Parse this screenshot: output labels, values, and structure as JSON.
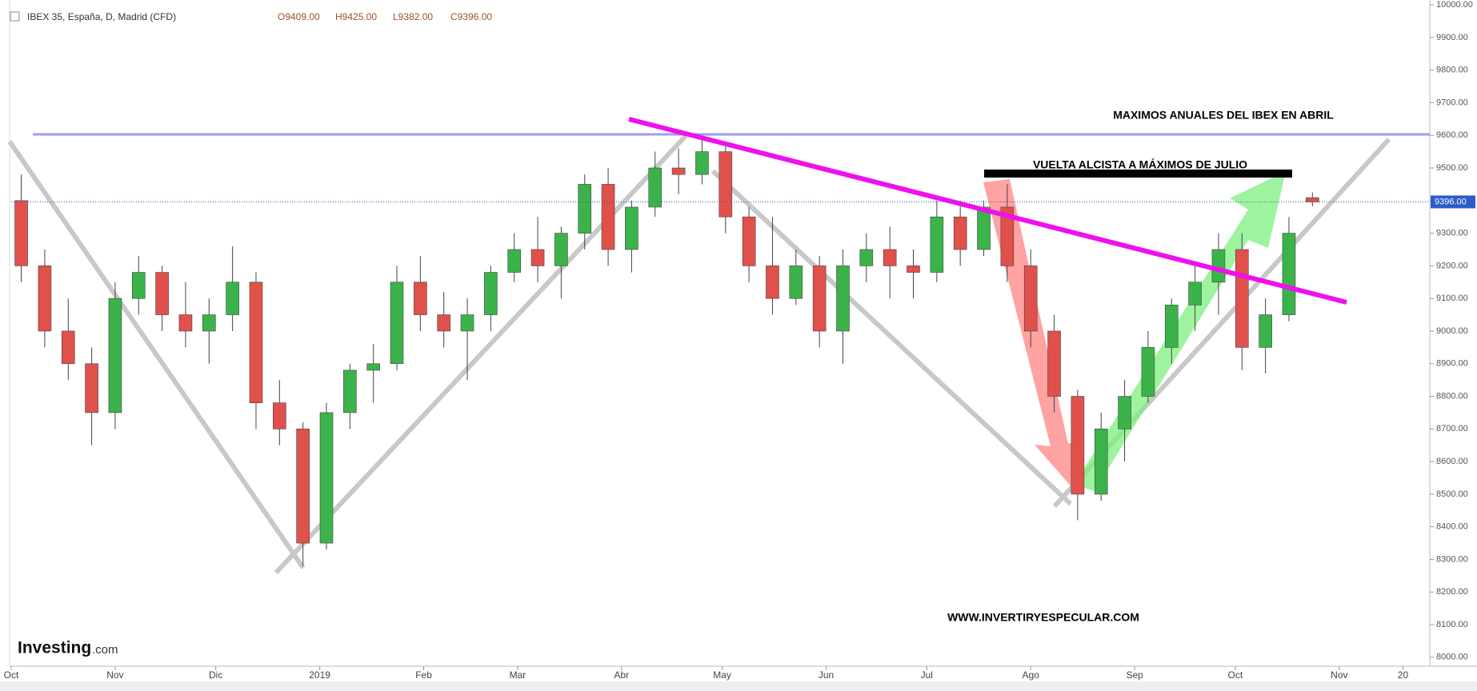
{
  "chart_data": {
    "type": "candlestick",
    "title": "IBEX 35, España, D, Madrid (CFD)",
    "ohlc_labels": [
      "O9409.00",
      "H9425.00",
      "L9382.00",
      "C9396.00"
    ],
    "up_color": "#3bb34a",
    "down_color": "#e0514b",
    "grid": false,
    "xlim": [
      0,
      423
    ],
    "xticks": [
      {
        "value": 0,
        "label": "Oct"
      },
      {
        "value": 31,
        "label": "Nov"
      },
      {
        "value": 61,
        "label": "Dic"
      },
      {
        "value": 92,
        "label": "2019"
      },
      {
        "value": 123,
        "label": "Feb"
      },
      {
        "value": 151,
        "label": "Mar"
      },
      {
        "value": 182,
        "label": "Abr"
      },
      {
        "value": 212,
        "label": "May"
      },
      {
        "value": 243,
        "label": "Jun"
      },
      {
        "value": 273,
        "label": "Jul"
      },
      {
        "value": 304,
        "label": "Ago"
      },
      {
        "value": 335,
        "label": "Sep"
      },
      {
        "value": 365,
        "label": "Oct"
      },
      {
        "value": 396,
        "label": "Nov"
      },
      {
        "value": 415,
        "label": "20"
      }
    ],
    "ylim": [
      7980,
      10010
    ],
    "yticks": [
      {
        "value": 8000,
        "label": "8000.00"
      },
      {
        "value": 8100,
        "label": "8100.00"
      },
      {
        "value": 8200,
        "label": "8200.00"
      },
      {
        "value": 8300,
        "label": "8300.00"
      },
      {
        "value": 8400,
        "label": "8400.00"
      },
      {
        "value": 8500,
        "label": "8500.00"
      },
      {
        "value": 8600,
        "label": "8600.00"
      },
      {
        "value": 8700,
        "label": "8700.00"
      },
      {
        "value": 8800,
        "label": "8800.00"
      },
      {
        "value": 8900,
        "label": "8900.00"
      },
      {
        "value": 9000,
        "label": "9000.00"
      },
      {
        "value": 9100,
        "label": "9100.00"
      },
      {
        "value": 9200,
        "label": "9200.00"
      },
      {
        "value": 9300,
        "label": "9300.00"
      },
      {
        "value": 9400,
        "label": "9400.00"
      },
      {
        "value": 9500,
        "label": "9500.00"
      },
      {
        "value": 9600,
        "label": "9600.00"
      },
      {
        "value": 9700,
        "label": "9700.00"
      },
      {
        "value": 9800,
        "label": "9800.00"
      },
      {
        "value": 9900,
        "label": "9900.00"
      },
      {
        "value": 10000,
        "label": "10000.00"
      }
    ],
    "last_price": {
      "value": 9396,
      "label": "9396.00"
    },
    "x": [
      3,
      10,
      17,
      24,
      31,
      38,
      45,
      52,
      59,
      66,
      73,
      80,
      87,
      94,
      101,
      108,
      115,
      122,
      129,
      136,
      143,
      150,
      157,
      164,
      171,
      178,
      185,
      192,
      199,
      206,
      213,
      220,
      227,
      234,
      241,
      248,
      255,
      262,
      269,
      276,
      283,
      290,
      297,
      304,
      311,
      318,
      325,
      332,
      339,
      346,
      353,
      360,
      367,
      374,
      381,
      388
    ],
    "open": [
      9400,
      9200,
      9000,
      8900,
      8750,
      9100,
      9180,
      9050,
      9000,
      9050,
      9150,
      8780,
      8700,
      8350,
      8750,
      8880,
      8900,
      9150,
      9050,
      9000,
      9050,
      9180,
      9250,
      9200,
      9300,
      9450,
      9250,
      9380,
      9500,
      9480,
      9550,
      9350,
      9200,
      9100,
      9200,
      9000,
      9200,
      9250,
      9200,
      9180,
      9350,
      9250,
      9380,
      9200,
      9000,
      8800,
      8500,
      8700,
      8800,
      8950,
      9080,
      9150,
      9250,
      8950,
      9050,
      9409
    ],
    "high": [
      9480,
      9250,
      9100,
      8950,
      9150,
      9230,
      9200,
      9150,
      9100,
      9260,
      9180,
      8850,
      8720,
      8780,
      8900,
      8960,
      9200,
      9230,
      9120,
      9100,
      9200,
      9300,
      9350,
      9320,
      9480,
      9500,
      9400,
      9550,
      9560,
      9600,
      9580,
      9380,
      9350,
      9250,
      9230,
      9250,
      9300,
      9320,
      9250,
      9400,
      9400,
      9400,
      9450,
      9250,
      9050,
      8820,
      8750,
      8850,
      9000,
      9100,
      9200,
      9300,
      9300,
      9100,
      9350,
      9425
    ],
    "low": [
      9150,
      8950,
      8850,
      8650,
      8700,
      9050,
      9000,
      8950,
      8900,
      9000,
      8700,
      8650,
      8280,
      8330,
      8700,
      8780,
      8880,
      9000,
      8950,
      8850,
      9000,
      9150,
      9150,
      9100,
      9250,
      9200,
      9180,
      9350,
      9420,
      9450,
      9300,
      9150,
      9050,
      9080,
      8950,
      8900,
      9150,
      9100,
      9100,
      9150,
      9200,
      9230,
      9150,
      8950,
      8750,
      8420,
      8480,
      8600,
      8780,
      8900,
      9000,
      9050,
      8880,
      8870,
      9030,
      9382
    ],
    "close": [
      9200,
      9000,
      8900,
      8750,
      9100,
      9180,
      9050,
      9000,
      9050,
      9150,
      8780,
      8700,
      8350,
      8750,
      8880,
      8900,
      9150,
      9050,
      9000,
      9050,
      9180,
      9250,
      9200,
      9300,
      9450,
      9250,
      9380,
      9500,
      9480,
      9550,
      9350,
      9200,
      9100,
      9200,
      9000,
      9200,
      9250,
      9200,
      9180,
      9350,
      9250,
      9380,
      9200,
      9000,
      8800,
      8500,
      8700,
      8800,
      8950,
      9080,
      9150,
      9250,
      8950,
      9050,
      9300,
      9396
    ],
    "annotations": [
      "MAXIMOS ANUALES DEL IBEX EN ABRIL",
      "VUELTA ALCISTA A MÁXIMOS DE JULIO",
      "WWW.INVERTIRYESPECULAR.COM"
    ],
    "logo": {
      "brand": "Investing",
      "suffix": ".com"
    }
  }
}
